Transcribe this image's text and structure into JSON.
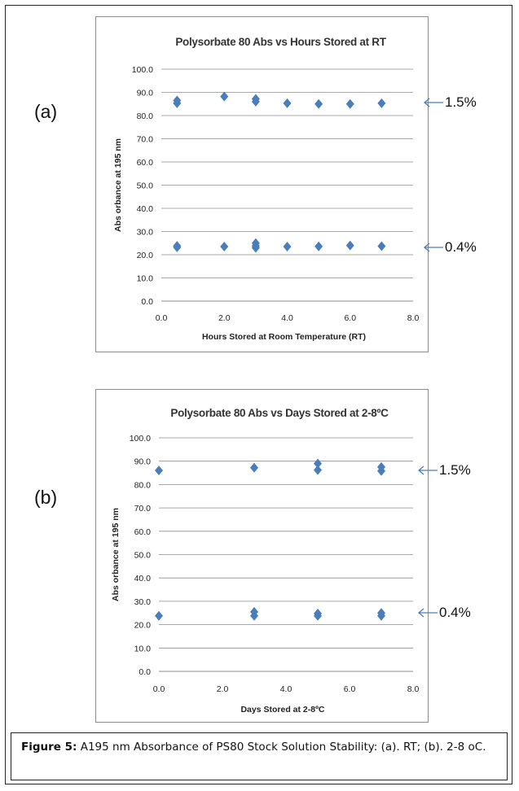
{
  "panels": {
    "a": {
      "label": "(a)"
    },
    "b": {
      "label": "(b)"
    }
  },
  "annotations": {
    "a_high": "1.5%",
    "a_low": "0.4%",
    "b_high": "1.5%",
    "b_low": "0.4%"
  },
  "caption": {
    "bold": "Figure 5:",
    "text": " A195 nm Absorbance of PS80 Stock Solution Stability: (a). RT; (b). 2-8 oC."
  },
  "colors": {
    "marker": "#4a7ebb",
    "arrow": "#4a7ebb"
  },
  "chart_data": [
    {
      "type": "scatter",
      "title": "Polysorbate 80 Abs vs Hours Stored at RT",
      "xlabel": "Hours Stored at Room Temperature (RT)",
      "ylabel": "Abs orbance at 195 nm",
      "xlim": [
        0,
        8
      ],
      "ylim": [
        0,
        100
      ],
      "xticks": [
        "0.0",
        "2.0",
        "4.0",
        "6.0",
        "8.0"
      ],
      "yticks": [
        "0.0",
        "10.0",
        "20.0",
        "30.0",
        "40.0",
        "50.0",
        "60.0",
        "70.0",
        "80.0",
        "90.0",
        "100.0"
      ],
      "grid": "horizontal",
      "points": [
        [
          0.5,
          86.5
        ],
        [
          0.5,
          85.3
        ],
        [
          2.0,
          88.2
        ],
        [
          3.0,
          87.2
        ],
        [
          3.0,
          86.0
        ],
        [
          4.0,
          85.3
        ],
        [
          5.0,
          85.0
        ],
        [
          6.0,
          85.0
        ],
        [
          7.0,
          85.3
        ],
        [
          0.5,
          23.8
        ],
        [
          0.5,
          23.2
        ],
        [
          2.0,
          23.5
        ],
        [
          3.0,
          25.0
        ],
        [
          3.0,
          23.8
        ],
        [
          3.0,
          23.0
        ],
        [
          4.0,
          23.5
        ],
        [
          5.0,
          23.6
        ],
        [
          6.0,
          24.0
        ],
        [
          7.0,
          23.7
        ]
      ]
    },
    {
      "type": "scatter",
      "title": "Polysorbate 80 Abs vs Days Stored at 2-8ºC",
      "xlabel": "Days  Stored at 2-8ºC",
      "ylabel": "Abs orbance at 195 nm",
      "xlim": [
        0,
        8
      ],
      "ylim": [
        0,
        100
      ],
      "xticks": [
        "0.0",
        "2.0",
        "4.0",
        "6.0",
        "8.0"
      ],
      "yticks": [
        "0.0",
        "10.0",
        "20.0",
        "30.0",
        "40.0",
        "50.0",
        "60.0",
        "70.0",
        "80.0",
        "90.0",
        "100.0"
      ],
      "grid": "horizontal",
      "points": [
        [
          0.0,
          86.0
        ],
        [
          3.0,
          87.2
        ],
        [
          5.0,
          89.0
        ],
        [
          5.0,
          86.2
        ],
        [
          7.0,
          87.5
        ],
        [
          7.0,
          85.8
        ],
        [
          0.0,
          23.8
        ],
        [
          3.0,
          25.5
        ],
        [
          3.0,
          23.8
        ],
        [
          5.0,
          24.8
        ],
        [
          5.0,
          23.8
        ],
        [
          7.0,
          25.0
        ],
        [
          7.0,
          23.8
        ]
      ]
    }
  ]
}
